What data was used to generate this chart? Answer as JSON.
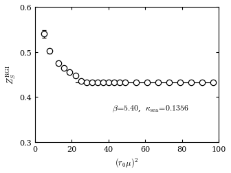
{
  "x": [
    5,
    8,
    13,
    16,
    19,
    22,
    25,
    28,
    31,
    34,
    37,
    40,
    43,
    46,
    49,
    55,
    61,
    67,
    73,
    79,
    85,
    91,
    97
  ],
  "y": [
    0.54,
    0.502,
    0.475,
    0.464,
    0.455,
    0.447,
    0.435,
    0.432,
    0.432,
    0.432,
    0.432,
    0.432,
    0.432,
    0.432,
    0.432,
    0.432,
    0.432,
    0.432,
    0.432,
    0.433,
    0.432,
    0.432,
    0.432
  ],
  "yerr": [
    0.008,
    0.005,
    0.004,
    0.003,
    0.003,
    0.003,
    0.002,
    0.002,
    0.002,
    0.002,
    0.002,
    0.002,
    0.002,
    0.002,
    0.002,
    0.002,
    0.002,
    0.002,
    0.002,
    0.002,
    0.002,
    0.002,
    0.002
  ],
  "line_x": [
    22,
    97
  ],
  "line_y": [
    0.432,
    0.432
  ],
  "xlabel": "$(r_0\\mu)^2$",
  "ylabel": "$Z_S^{\\rm RGI}$",
  "annotation": "$\\beta\\!=\\!5.40$,  $\\kappa_{\\rm sea}\\!=\\!0.1356$",
  "xlim": [
    0,
    100
  ],
  "ylim": [
    0.3,
    0.6
  ],
  "xticks": [
    0,
    20,
    40,
    60,
    80,
    100
  ],
  "yticks": [
    0.3,
    0.4,
    0.5,
    0.6
  ]
}
